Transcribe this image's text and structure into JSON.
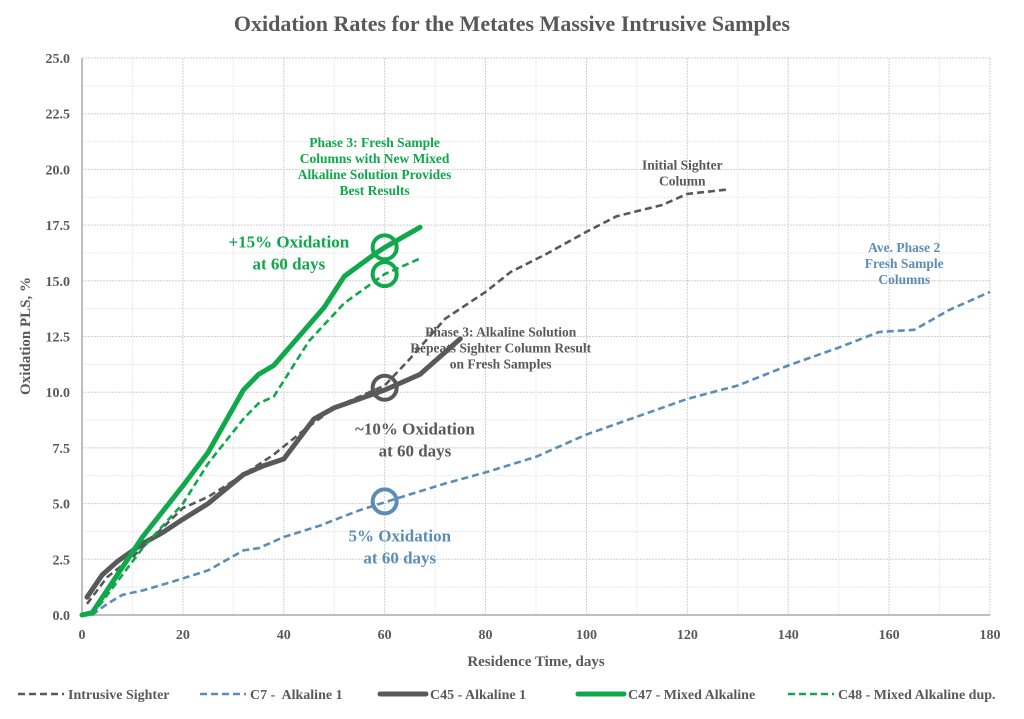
{
  "chart_data": {
    "type": "line",
    "title": "Oxidation Rates for the Metates Massive Intrusive Samples",
    "xlabel": "Residence Time, days",
    "ylabel": "Oxidation PLS, %",
    "xlim": [
      0,
      180
    ],
    "ylim": [
      0,
      25
    ],
    "xticks": [
      0,
      20,
      40,
      60,
      80,
      100,
      120,
      140,
      160,
      180
    ],
    "yticks": [
      "0.0",
      "2.5",
      "5.0",
      "7.5",
      "10.0",
      "12.5",
      "15.0",
      "17.5",
      "20.0",
      "22.5",
      "25.0"
    ],
    "grid": true,
    "legend_position": "bottom",
    "series": [
      {
        "name": "Intrusive Sighter",
        "color": "#595959",
        "style": "dashed",
        "x": [
          1,
          5,
          10,
          15,
          20,
          25,
          32,
          38,
          44,
          50,
          56,
          60,
          65,
          72,
          80,
          85,
          92,
          100,
          106,
          115,
          120,
          128
        ],
        "y": [
          0.5,
          1.7,
          2.6,
          3.7,
          4.8,
          5.3,
          6.3,
          7.2,
          8.3,
          9.3,
          9.9,
          10.3,
          11.5,
          13.3,
          14.5,
          15.4,
          16.2,
          17.2,
          17.9,
          18.4,
          18.9,
          19.1
        ]
      },
      {
        "name": "C7 -  Alkaline 1",
        "color": "#5B8DB8",
        "style": "dashed",
        "x": [
          2,
          5,
          8,
          12,
          18,
          25,
          32,
          35,
          40,
          47,
          55,
          62,
          72,
          80,
          90,
          100,
          110,
          120,
          130,
          140,
          150,
          158,
          165,
          172,
          180
        ],
        "y": [
          0,
          0.5,
          0.9,
          1.1,
          1.5,
          2.0,
          2.9,
          3.0,
          3.5,
          4.0,
          4.7,
          5.2,
          5.9,
          6.4,
          7.1,
          8.1,
          8.9,
          9.7,
          10.3,
          11.2,
          12.0,
          12.7,
          12.8,
          13.7,
          14.5
        ]
      },
      {
        "name": "C45 - Alkaline 1",
        "color": "#595959",
        "style": "solid",
        "x": [
          1,
          4,
          7,
          12,
          16,
          20,
          25,
          32,
          36,
          40,
          46,
          50,
          60,
          67,
          75
        ],
        "y": [
          0.8,
          1.8,
          2.4,
          3.2,
          3.7,
          4.3,
          5.0,
          6.3,
          6.7,
          7.0,
          8.8,
          9.3,
          10.1,
          10.8,
          12.4
        ]
      },
      {
        "name": "C47 - Mixed Alkaline",
        "color": "#0FA84A",
        "style": "solid",
        "x": [
          0,
          2,
          12,
          20,
          25,
          32,
          35,
          38,
          48,
          52,
          58,
          60,
          67
        ],
        "y": [
          0,
          0.1,
          3.5,
          5.8,
          7.3,
          10.1,
          10.8,
          11.2,
          13.8,
          15.2,
          16.2,
          16.5,
          17.4
        ]
      },
      {
        "name": "C48 - Mixed Alkaline dup.",
        "color": "#0FA84A",
        "style": "dashed",
        "x": [
          2,
          12,
          20,
          25,
          32,
          35,
          38,
          45,
          52,
          60,
          67
        ],
        "y": [
          0,
          3.0,
          5.0,
          6.8,
          8.8,
          9.5,
          9.8,
          12.3,
          14.0,
          15.3,
          16.0
        ]
      }
    ],
    "markers": [
      {
        "name": "c47-60day-circle",
        "x": 60,
        "y": 16.5,
        "color": "#0FA84A"
      },
      {
        "name": "c48-60day-circle",
        "x": 60,
        "y": 15.3,
        "color": "#0FA84A"
      },
      {
        "name": "c45-60day-circle",
        "x": 60,
        "y": 10.2,
        "color": "#595959"
      },
      {
        "name": "c7-60day-circle",
        "x": 60,
        "y": 5.1,
        "color": "#5B8DB8"
      }
    ],
    "annotations": [
      {
        "name": "phase3-mixed-note",
        "color": "#0FA84A",
        "size": "small",
        "x": 58,
        "y": 21.0,
        "lines": [
          "Phase 3: Fresh Sample",
          "Columns with New Mixed",
          "Alkaline Solution Provides",
          "Best Results"
        ]
      },
      {
        "name": "initial-sighter-note",
        "color": "#595959",
        "size": "small",
        "x": 119,
        "y": 20.0,
        "lines": [
          "Initial Sighter",
          "Column"
        ]
      },
      {
        "name": "c47-15pct-note",
        "color": "#0FA84A",
        "size": "big",
        "x": 41,
        "y": 16.5,
        "lines": [
          "+15% Oxidation",
          "at 60 days"
        ]
      },
      {
        "name": "phase2-note",
        "color": "#5B8DB8",
        "size": "small",
        "x": 163,
        "y": 16.3,
        "lines": [
          "Ave. Phase 2",
          "Fresh Sample",
          "Columns"
        ]
      },
      {
        "name": "phase3-alkaline-note",
        "color": "#595959",
        "size": "small",
        "x": 83,
        "y": 12.5,
        "lines": [
          "Phase 3: Alkaline Solution",
          "Repeats Sighter Column Result",
          "on Fresh Samples"
        ]
      },
      {
        "name": "c45-10pct-note",
        "color": "#595959",
        "size": "big",
        "x": 66,
        "y": 8.1,
        "lines": [
          "~10% Oxidation",
          "at 60 days"
        ]
      },
      {
        "name": "c7-5pct-note",
        "color": "#5B8DB8",
        "size": "big",
        "x": 63,
        "y": 3.3,
        "lines": [
          "5% Oxidation",
          "at 60 days"
        ]
      }
    ]
  }
}
